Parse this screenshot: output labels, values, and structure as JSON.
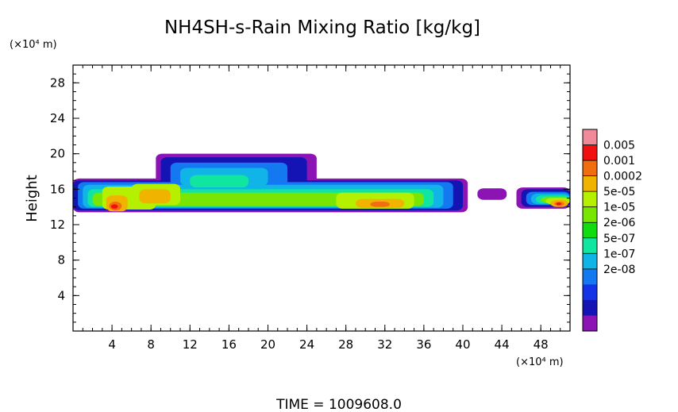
{
  "chart_data": {
    "type": "heatmap",
    "title": "NH4SH-s-Rain Mixing Ratio [kg/kg]",
    "xlabel": "",
    "ylabel": "Height",
    "x_unit": "(×10⁴ m)",
    "y_unit": "(×10⁴ m)",
    "xlim": [
      0,
      51
    ],
    "ylim": [
      0,
      30
    ],
    "x_ticks": [
      4,
      8,
      12,
      16,
      20,
      24,
      28,
      32,
      36,
      40,
      44,
      48
    ],
    "y_ticks": [
      4,
      8,
      12,
      16,
      20,
      24,
      28
    ],
    "colorbar": {
      "scale": "log",
      "labels": [
        "0.005",
        "0.001",
        "0.0002",
        "5e-05",
        "1e-05",
        "2e-06",
        "5e-07",
        "1e-07",
        "2e-08"
      ],
      "colors": [
        "#f08a9a",
        "#f01010",
        "#f06e10",
        "#f0b400",
        "#b4f000",
        "#78e600",
        "#10dc10",
        "#10e6a0",
        "#10b4e6",
        "#1478f0",
        "#1432e6",
        "#1414b4",
        "#8c14b4"
      ]
    },
    "field_layers": [
      {
        "level": 0,
        "color": "#8c14b4",
        "regions": [
          {
            "x": [
              0,
              40.5
            ],
            "y": [
              13.4,
              17.2
            ]
          },
          {
            "x": [
              8.5,
              25
            ],
            "y": [
              16.0,
              20.0
            ]
          },
          {
            "x": [
              41.5,
              44.5
            ],
            "y": [
              14.8,
              16.1
            ]
          },
          {
            "x": [
              45.5,
              51
            ],
            "y": [
              13.8,
              16.2
            ]
          }
        ]
      },
      {
        "level": 1,
        "color": "#1414b4",
        "regions": [
          {
            "x": [
              0,
              40
            ],
            "y": [
              13.6,
              17.0
            ]
          },
          {
            "x": [
              9,
              24
            ],
            "y": [
              16.2,
              19.6
            ]
          },
          {
            "x": [
              46,
              51
            ],
            "y": [
              14.0,
              16.0
            ]
          }
        ]
      },
      {
        "level": 2,
        "color": "#1478f0",
        "regions": [
          {
            "x": [
              0.5,
              39
            ],
            "y": [
              13.8,
              16.8
            ]
          },
          {
            "x": [
              10,
              22
            ],
            "y": [
              16.4,
              19.0
            ]
          },
          {
            "x": [
              46.5,
              51
            ],
            "y": [
              14.2,
              15.7
            ]
          }
        ]
      },
      {
        "level": 3,
        "color": "#10b4e6",
        "regions": [
          {
            "x": [
              1,
              38
            ],
            "y": [
              13.9,
              16.5
            ]
          },
          {
            "x": [
              11,
              20
            ],
            "y": [
              16.4,
              18.4
            ]
          },
          {
            "x": [
              47,
              51
            ],
            "y": [
              14.3,
              15.5
            ]
          }
        ]
      },
      {
        "level": 4,
        "color": "#10e6a0",
        "regions": [
          {
            "x": [
              1.5,
              37
            ],
            "y": [
              14.0,
              16.0
            ]
          },
          {
            "x": [
              12,
              18
            ],
            "y": [
              16.2,
              17.6
            ]
          },
          {
            "x": [
              47.5,
              51
            ],
            "y": [
              14.4,
              15.3
            ]
          }
        ]
      },
      {
        "level": 5,
        "color": "#78e600",
        "regions": [
          {
            "x": [
              2,
              36
            ],
            "y": [
              14.1,
              15.6
            ]
          },
          {
            "x": [
              48,
              51
            ],
            "y": [
              14.5,
              15.1
            ]
          }
        ]
      },
      {
        "level": 6,
        "color": "#b4f000",
        "regions": [
          {
            "x": [
              3,
              8.5
            ],
            "y": [
              13.7,
              16.3
            ]
          },
          {
            "x": [
              6,
              11
            ],
            "y": [
              14.2,
              16.6
            ]
          },
          {
            "x": [
              27,
              35
            ],
            "y": [
              13.8,
              15.6
            ]
          },
          {
            "x": [
              48.5,
              51
            ],
            "y": [
              14.3,
              15.0
            ]
          }
        ]
      },
      {
        "level": 7,
        "color": "#f0b400",
        "regions": [
          {
            "x": [
              3.4,
              5.6
            ],
            "y": [
              13.5,
              15.3
            ]
          },
          {
            "x": [
              6.8,
              10
            ],
            "y": [
              14.4,
              16.0
            ]
          },
          {
            "x": [
              29,
              34
            ],
            "y": [
              13.9,
              14.9
            ]
          },
          {
            "x": [
              49,
              50.8
            ],
            "y": [
              14.0,
              14.8
            ]
          }
        ]
      },
      {
        "level": 8,
        "color": "#f06e10",
        "regions": [
          {
            "x": [
              3.7,
              5.0
            ],
            "y": [
              13.6,
              14.6
            ]
          },
          {
            "x": [
              30.5,
              32.5
            ],
            "y": [
              14.0,
              14.6
            ]
          },
          {
            "x": [
              49.4,
              50.4
            ],
            "y": [
              14.1,
              14.6
            ]
          }
        ]
      },
      {
        "level": 9,
        "color": "#f01010",
        "regions": [
          {
            "x": [
              3.9,
              4.6
            ],
            "y": [
              13.8,
              14.3
            ]
          },
          {
            "x": [
              49.6,
              50.1
            ],
            "y": [
              14.2,
              14.5
            ]
          }
        ]
      }
    ]
  },
  "footer": {
    "time_text": "TIME = 1009608.0"
  }
}
